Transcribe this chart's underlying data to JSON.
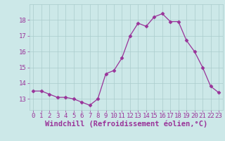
{
  "x": [
    0,
    1,
    2,
    3,
    4,
    5,
    6,
    7,
    8,
    9,
    10,
    11,
    12,
    13,
    14,
    15,
    16,
    17,
    18,
    19,
    20,
    21,
    22,
    23
  ],
  "y": [
    13.5,
    13.5,
    13.3,
    13.1,
    13.1,
    13.0,
    12.8,
    12.6,
    13.0,
    14.6,
    14.8,
    15.6,
    17.0,
    17.8,
    17.6,
    18.2,
    18.4,
    17.9,
    17.9,
    16.7,
    16.0,
    15.0,
    13.8,
    13.4
  ],
  "line_color": "#993399",
  "marker": "D",
  "marker_size": 2.5,
  "bg_color": "#cce8e8",
  "grid_color": "#aacccc",
  "xlabel": "Windchill (Refroidissement éolien,°C)",
  "xlabel_fontsize": 7.5,
  "tick_fontsize": 6.5,
  "ylim": [
    12.3,
    19.0
  ],
  "yticks": [
    13,
    14,
    15,
    16,
    17,
    18
  ],
  "xlim": [
    -0.5,
    23.5
  ],
  "xticks": [
    0,
    1,
    2,
    3,
    4,
    5,
    6,
    7,
    8,
    9,
    10,
    11,
    12,
    13,
    14,
    15,
    16,
    17,
    18,
    19,
    20,
    21,
    22,
    23
  ]
}
